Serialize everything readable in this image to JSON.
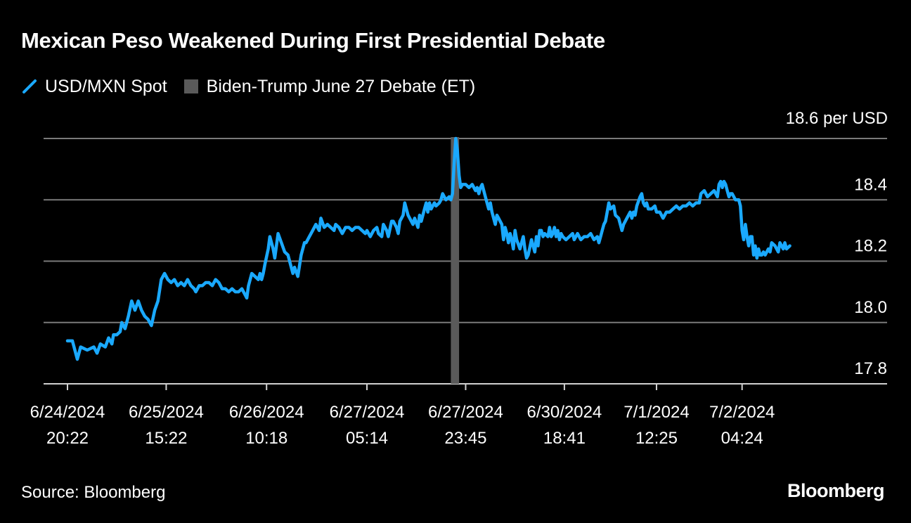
{
  "title": "Mexican Peso Weakened During First Presidential Debate",
  "legend": {
    "series_label": "USD/MXN Spot",
    "band_label": "Biden-Trump June 27 Debate (ET)"
  },
  "unit_label": "18.6 per USD",
  "source": "Source: Bloomberg",
  "logo": "Bloomberg",
  "colors": {
    "series": "#1aa9ff",
    "band": "#5a5a5a",
    "grid": "#7a7a7a",
    "background": "#000000"
  },
  "chart_data": {
    "type": "line",
    "title": "Mexican Peso Weakened During First Presidential Debate",
    "ylim": [
      17.8,
      18.6
    ],
    "y_ticks": [
      17.8,
      18.0,
      18.2,
      18.4,
      18.6
    ],
    "y_tick_labels": [
      "17.8",
      "18.0",
      "18.2",
      "18.4",
      "18.6 per USD"
    ],
    "grid": true,
    "legend_position": "top-left",
    "x_ticks": [
      {
        "index": 0,
        "line1": "6/24/2024",
        "line2": "20:22"
      },
      {
        "index": 60,
        "line1": "6/25/2024",
        "line2": "15:22"
      },
      {
        "index": 121,
        "line1": "6/26/2024",
        "line2": "10:18"
      },
      {
        "index": 182,
        "line1": "6/27/2024",
        "line2": "05:14"
      },
      {
        "index": 242,
        "line1": "6/27/2024",
        "line2": "23:45"
      },
      {
        "index": 302,
        "line1": "6/30/2024",
        "line2": "18:41"
      },
      {
        "index": 358,
        "line1": "7/1/2024",
        "line2": "12:25"
      },
      {
        "index": 410,
        "line1": "7/2/2024",
        "line2": "04:24"
      }
    ],
    "x_max_index": 452,
    "highlight_band": {
      "label": "Biden-Trump June 27 Debate (ET)",
      "start_index": 233,
      "end_index": 238
    },
    "series": [
      {
        "name": "USD/MXN Spot",
        "points": [
          [
            0,
            17.94
          ],
          [
            3,
            17.94
          ],
          [
            5,
            17.9
          ],
          [
            6,
            17.88
          ],
          [
            8,
            17.92
          ],
          [
            12,
            17.91
          ],
          [
            16,
            17.92
          ],
          [
            18,
            17.9
          ],
          [
            20,
            17.93
          ],
          [
            23,
            17.92
          ],
          [
            25,
            17.95
          ],
          [
            27,
            17.93
          ],
          [
            28,
            17.96
          ],
          [
            30,
            17.96
          ],
          [
            32,
            17.97
          ],
          [
            33,
            18.0
          ],
          [
            35,
            17.98
          ],
          [
            37,
            18.02
          ],
          [
            39,
            18.07
          ],
          [
            41,
            18.04
          ],
          [
            43,
            18.07
          ],
          [
            45,
            18.04
          ],
          [
            47,
            18.02
          ],
          [
            49,
            18.01
          ],
          [
            51,
            17.99
          ],
          [
            53,
            18.04
          ],
          [
            55,
            18.07
          ],
          [
            57,
            18.14
          ],
          [
            59,
            18.16
          ],
          [
            61,
            18.14
          ],
          [
            63,
            18.13
          ],
          [
            65,
            18.14
          ],
          [
            67,
            18.12
          ],
          [
            69,
            18.13
          ],
          [
            71,
            18.12
          ],
          [
            73,
            18.14
          ],
          [
            75,
            18.12
          ],
          [
            77,
            18.11
          ],
          [
            78,
            18.1
          ],
          [
            80,
            18.12
          ],
          [
            82,
            18.12
          ],
          [
            84,
            18.13
          ],
          [
            86,
            18.13
          ],
          [
            88,
            18.12
          ],
          [
            90,
            18.14
          ],
          [
            92,
            18.13
          ],
          [
            94,
            18.11
          ],
          [
            96,
            18.11
          ],
          [
            98,
            18.1
          ],
          [
            100,
            18.11
          ],
          [
            102,
            18.1
          ],
          [
            104,
            18.1
          ],
          [
            106,
            18.11
          ],
          [
            108,
            18.09
          ],
          [
            109,
            18.08
          ],
          [
            110,
            18.12
          ],
          [
            112,
            18.16
          ],
          [
            114,
            18.15
          ],
          [
            116,
            18.14
          ],
          [
            117,
            18.16
          ],
          [
            118,
            18.14
          ],
          [
            119,
            18.16
          ],
          [
            120,
            18.19
          ],
          [
            122,
            18.24
          ],
          [
            123,
            18.28
          ],
          [
            125,
            18.24
          ],
          [
            126,
            18.21
          ],
          [
            128,
            18.29
          ],
          [
            130,
            18.26
          ],
          [
            132,
            18.23
          ],
          [
            134,
            18.22
          ],
          [
            136,
            18.18
          ],
          [
            137,
            18.16
          ],
          [
            138,
            18.18
          ],
          [
            140,
            18.15
          ],
          [
            142,
            18.22
          ],
          [
            144,
            18.26
          ],
          [
            145,
            18.26
          ],
          [
            147,
            18.28
          ],
          [
            149,
            18.3
          ],
          [
            151,
            18.32
          ],
          [
            153,
            18.3
          ],
          [
            154,
            18.34
          ],
          [
            156,
            18.31
          ],
          [
            158,
            18.32
          ],
          [
            160,
            18.31
          ],
          [
            162,
            18.3
          ],
          [
            163,
            18.32
          ],
          [
            165,
            18.31
          ],
          [
            167,
            18.29
          ],
          [
            169,
            18.31
          ],
          [
            171,
            18.31
          ],
          [
            173,
            18.3
          ],
          [
            175,
            18.31
          ],
          [
            177,
            18.31
          ],
          [
            179,
            18.3
          ],
          [
            181,
            18.29
          ],
          [
            182,
            18.3
          ],
          [
            184,
            18.28
          ],
          [
            186,
            18.3
          ],
          [
            188,
            18.31
          ],
          [
            189,
            18.29
          ],
          [
            191,
            18.28
          ],
          [
            192,
            18.32
          ],
          [
            194,
            18.3
          ],
          [
            195,
            18.28
          ],
          [
            197,
            18.33
          ],
          [
            198,
            18.33
          ],
          [
            200,
            18.31
          ],
          [
            201,
            18.29
          ],
          [
            202,
            18.33
          ],
          [
            204,
            18.35
          ],
          [
            205,
            18.39
          ],
          [
            207,
            18.35
          ],
          [
            209,
            18.33
          ],
          [
            210,
            18.32
          ],
          [
            211,
            18.34
          ],
          [
            213,
            18.31
          ],
          [
            214,
            18.35
          ],
          [
            215,
            18.33
          ],
          [
            216,
            18.35
          ],
          [
            217,
            18.37
          ],
          [
            218,
            18.39
          ],
          [
            219,
            18.36
          ],
          [
            220,
            18.39
          ],
          [
            221,
            18.37
          ],
          [
            223,
            18.39
          ],
          [
            224,
            18.38
          ],
          [
            226,
            18.39
          ],
          [
            227,
            18.4
          ],
          [
            228,
            18.42
          ],
          [
            229,
            18.41
          ],
          [
            230,
            18.4
          ],
          [
            232,
            18.41
          ],
          [
            233,
            18.4
          ],
          [
            234,
            18.42
          ],
          [
            235,
            18.52
          ],
          [
            236,
            18.6
          ],
          [
            237,
            18.56
          ],
          [
            238,
            18.48
          ],
          [
            239,
            18.44
          ],
          [
            240,
            18.45
          ],
          [
            242,
            18.45
          ],
          [
            244,
            18.44
          ],
          [
            246,
            18.45
          ],
          [
            248,
            18.43
          ],
          [
            249,
            18.44
          ],
          [
            250,
            18.42
          ],
          [
            251,
            18.44
          ],
          [
            252,
            18.45
          ],
          [
            253,
            18.43
          ],
          [
            254,
            18.41
          ],
          [
            256,
            18.37
          ],
          [
            257,
            18.39
          ],
          [
            258,
            18.36
          ],
          [
            260,
            18.32
          ],
          [
            261,
            18.35
          ],
          [
            262,
            18.34
          ],
          [
            264,
            18.32
          ],
          [
            265,
            18.27
          ],
          [
            266,
            18.31
          ],
          [
            267,
            18.29
          ],
          [
            268,
            18.26
          ],
          [
            269,
            18.29
          ],
          [
            270,
            18.27
          ],
          [
            271,
            18.24
          ],
          [
            272,
            18.3
          ],
          [
            273,
            18.27
          ],
          [
            275,
            18.24
          ],
          [
            276,
            18.26
          ],
          [
            277,
            18.28
          ],
          [
            278,
            18.24
          ],
          [
            279,
            18.21
          ],
          [
            280,
            18.22
          ],
          [
            282,
            18.27
          ],
          [
            283,
            18.25
          ],
          [
            284,
            18.23
          ],
          [
            285,
            18.28
          ],
          [
            286,
            18.25
          ],
          [
            287,
            18.3
          ],
          [
            288,
            18.3
          ],
          [
            289,
            18.28
          ],
          [
            290,
            18.29
          ],
          [
            292,
            18.28
          ],
          [
            293,
            18.31
          ],
          [
            294,
            18.28
          ],
          [
            295,
            18.29
          ],
          [
            296,
            18.31
          ],
          [
            297,
            18.28
          ],
          [
            298,
            18.3
          ],
          [
            299,
            18.27
          ],
          [
            300,
            18.29
          ],
          [
            301,
            18.28
          ],
          [
            303,
            18.27
          ],
          [
            305,
            18.28
          ],
          [
            307,
            18.29
          ],
          [
            308,
            18.27
          ],
          [
            310,
            18.29
          ],
          [
            312,
            18.27
          ],
          [
            314,
            18.28
          ],
          [
            316,
            18.28
          ],
          [
            318,
            18.29
          ],
          [
            320,
            18.27
          ],
          [
            322,
            18.28
          ],
          [
            323,
            18.26
          ],
          [
            324,
            18.28
          ],
          [
            325,
            18.3
          ],
          [
            326,
            18.32
          ],
          [
            327,
            18.33
          ],
          [
            328,
            18.36
          ],
          [
            329,
            18.39
          ],
          [
            330,
            18.37
          ],
          [
            332,
            18.38
          ],
          [
            333,
            18.35
          ],
          [
            335,
            18.34
          ],
          [
            337,
            18.3
          ],
          [
            338,
            18.32
          ],
          [
            340,
            18.34
          ],
          [
            342,
            18.36
          ],
          [
            343,
            18.34
          ],
          [
            344,
            18.36
          ],
          [
            345,
            18.35
          ],
          [
            346,
            18.38
          ],
          [
            348,
            18.41
          ],
          [
            349,
            18.42
          ],
          [
            350,
            18.39
          ],
          [
            351,
            18.38
          ],
          [
            352,
            18.39
          ],
          [
            353,
            18.37
          ],
          [
            355,
            18.37
          ],
          [
            357,
            18.38
          ],
          [
            358,
            18.36
          ],
          [
            360,
            18.36
          ],
          [
            362,
            18.34
          ],
          [
            364,
            18.36
          ],
          [
            366,
            18.36
          ],
          [
            368,
            18.37
          ],
          [
            370,
            18.38
          ],
          [
            372,
            18.37
          ],
          [
            374,
            18.38
          ],
          [
            376,
            18.38
          ],
          [
            378,
            18.39
          ],
          [
            380,
            18.38
          ],
          [
            382,
            18.39
          ],
          [
            384,
            18.39
          ],
          [
            385,
            18.42
          ],
          [
            387,
            18.43
          ],
          [
            389,
            18.41
          ],
          [
            391,
            18.42
          ],
          [
            393,
            18.43
          ],
          [
            395,
            18.41
          ],
          [
            396,
            18.45
          ],
          [
            397,
            18.46
          ],
          [
            398,
            18.44
          ],
          [
            399,
            18.46
          ],
          [
            400,
            18.45
          ],
          [
            401,
            18.43
          ],
          [
            402,
            18.41
          ],
          [
            403,
            18.42
          ],
          [
            404,
            18.42
          ],
          [
            406,
            18.4
          ],
          [
            408,
            18.4
          ],
          [
            409,
            18.38
          ],
          [
            410,
            18.3
          ],
          [
            411,
            18.27
          ],
          [
            412,
            18.32
          ],
          [
            413,
            18.28
          ],
          [
            414,
            18.25
          ],
          [
            415,
            18.28
          ],
          [
            416,
            18.28
          ],
          [
            417,
            18.22
          ],
          [
            418,
            18.25
          ],
          [
            419,
            18.21
          ],
          [
            420,
            18.24
          ],
          [
            421,
            18.22
          ],
          [
            422,
            18.22
          ],
          [
            423,
            18.23
          ],
          [
            424,
            18.22
          ],
          [
            426,
            18.24
          ],
          [
            427,
            18.23
          ],
          [
            428,
            18.26
          ],
          [
            430,
            18.25
          ],
          [
            432,
            18.23
          ],
          [
            433,
            18.26
          ],
          [
            434,
            18.25
          ],
          [
            435,
            18.24
          ],
          [
            436,
            18.26
          ],
          [
            437,
            18.24
          ],
          [
            439,
            18.25
          ]
        ]
      }
    ]
  }
}
